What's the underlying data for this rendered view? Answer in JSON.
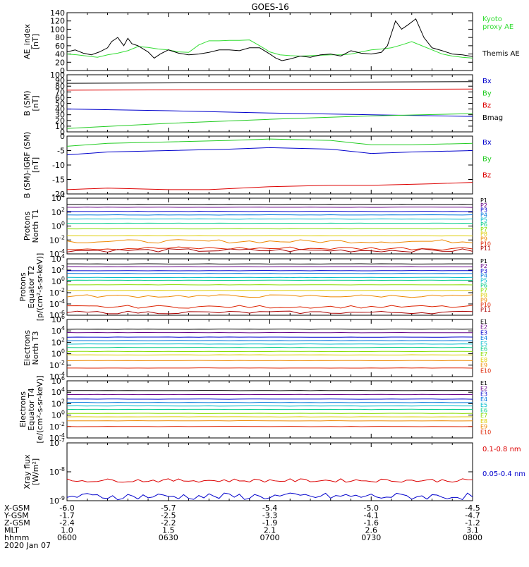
{
  "title": "GOES-16",
  "date_label": "2020 Jan 07",
  "ephemeris": {
    "rows": [
      {
        "label": "X-GSM",
        "values": [
          "-6.0",
          "-5.7",
          "-5.4",
          "-5.0",
          "-4.5"
        ]
      },
      {
        "label": "Y-GSM",
        "values": [
          "-1.7",
          "-2.5",
          "-3.3",
          "-4.1",
          "-4.7"
        ]
      },
      {
        "label": "Z-GSM",
        "values": [
          "-2.4",
          "-2.2",
          "-1.9",
          "-1.6",
          "-1.2"
        ]
      },
      {
        "label": "MLT",
        "values": [
          "1.0",
          "1.5",
          "2.1",
          "2.6",
          "3.1"
        ]
      },
      {
        "label": "hhmm",
        "values": [
          "0600",
          "0630",
          "0700",
          "0730",
          "0800"
        ]
      }
    ]
  },
  "colors": {
    "black": "#000000",
    "red": "#dd0000",
    "green": "#22cc22",
    "blue": "#0000cc",
    "kyoto_green": "#33dd33",
    "levels": [
      "#000000",
      "#660088",
      "#0000cc",
      "#0077dd",
      "#00bbcc",
      "#00cc88",
      "#88dd00",
      "#ddcc00",
      "#ee8800",
      "#dd2200",
      "#aa0000"
    ]
  },
  "chart_data": [
    {
      "type": "line",
      "ylabel": "AE_index\n[nT]",
      "ylim": [
        0,
        140
      ],
      "yticks": [
        "0",
        "20",
        "40",
        "60",
        "80",
        "100",
        "120",
        "140"
      ],
      "ylog": false,
      "legend": [
        {
          "text": "Kyoto\nproxy AE",
          "color": "#33dd33"
        },
        {
          "text": "Themis AE",
          "color": "#000000"
        }
      ],
      "x_hours": [
        6.0,
        6.5,
        7.0,
        7.5,
        8.0
      ],
      "series": [
        {
          "name": "Kyoto proxy AE",
          "color": "#33dd33",
          "x": [
            6.0,
            6.05,
            6.1,
            6.15,
            6.2,
            6.25,
            6.3,
            6.35,
            6.4,
            6.45,
            6.5,
            6.55,
            6.6,
            6.65,
            6.7,
            6.75,
            6.8,
            6.85,
            6.9,
            6.95,
            7.0,
            7.05,
            7.1,
            7.15,
            7.2,
            7.25,
            7.3,
            7.35,
            7.4,
            7.45,
            7.5,
            7.55,
            7.6,
            7.65,
            7.7,
            7.75,
            7.8,
            7.85,
            7.9,
            7.95,
            8.0
          ],
          "y": [
            40,
            38,
            35,
            32,
            38,
            42,
            48,
            58,
            56,
            52,
            50,
            45,
            44,
            62,
            72,
            72,
            73,
            73,
            74,
            60,
            45,
            38,
            36,
            35,
            36,
            37,
            38,
            38,
            40,
            45,
            50,
            52,
            55,
            62,
            70,
            60,
            50,
            40,
            35,
            32,
            30
          ]
        },
        {
          "name": "Themis AE",
          "color": "#000000",
          "x": [
            6.0,
            6.04,
            6.08,
            6.12,
            6.16,
            6.2,
            6.22,
            6.25,
            6.28,
            6.3,
            6.32,
            6.35,
            6.4,
            6.43,
            6.46,
            6.5,
            6.55,
            6.6,
            6.65,
            6.7,
            6.75,
            6.8,
            6.85,
            6.9,
            6.95,
            7.0,
            7.03,
            7.06,
            7.1,
            7.15,
            7.2,
            7.25,
            7.3,
            7.35,
            7.4,
            7.45,
            7.5,
            7.55,
            7.58,
            7.62,
            7.65,
            7.68,
            7.72,
            7.76,
            7.8,
            7.85,
            7.9,
            7.95,
            8.0
          ],
          "y": [
            45,
            50,
            42,
            38,
            45,
            55,
            70,
            80,
            60,
            78,
            65,
            60,
            45,
            30,
            40,
            50,
            42,
            38,
            40,
            44,
            50,
            50,
            48,
            55,
            55,
            40,
            30,
            24,
            28,
            35,
            32,
            38,
            40,
            35,
            48,
            42,
            40,
            44,
            60,
            120,
            100,
            110,
            125,
            80,
            55,
            48,
            40,
            38,
            34
          ]
        }
      ]
    },
    {
      "type": "line",
      "ylabel": "B (SM)\n[nT]",
      "ylim": [
        0,
        100
      ],
      "yticks": [
        "0",
        "10",
        "20",
        "30",
        "40",
        "50",
        "60",
        "70",
        "80",
        "90",
        "100"
      ],
      "ylog": false,
      "legend": [
        {
          "text": "Bx",
          "color": "#0000cc"
        },
        {
          "text": "By",
          "color": "#22cc22"
        },
        {
          "text": "Bz",
          "color": "#dd0000"
        },
        {
          "text": "Bmag",
          "color": "#000000"
        }
      ],
      "series": [
        {
          "name": "Bmag",
          "color": "#000000",
          "x": [
            6.0,
            8.0
          ],
          "y": [
            85,
            88
          ]
        },
        {
          "name": "Bz",
          "color": "#dd0000",
          "x": [
            6.0,
            8.0
          ],
          "y": [
            73,
            75
          ]
        },
        {
          "name": "Bx",
          "color": "#0000cc",
          "x": [
            6.0,
            6.5,
            7.0,
            7.5,
            8.0
          ],
          "y": [
            40,
            37,
            33,
            30,
            27
          ]
        },
        {
          "name": "By",
          "color": "#22cc22",
          "x": [
            6.0,
            6.5,
            7.0,
            7.5,
            8.0
          ],
          "y": [
            6,
            15,
            22,
            28,
            32
          ]
        }
      ]
    },
    {
      "type": "line",
      "ylabel": "B (SM)-IGRF (SM)\n[nT]",
      "ylim": [
        -20,
        0
      ],
      "yticks": [
        "-20",
        "-15",
        "-10",
        "-5",
        "0"
      ],
      "ylog": false,
      "legend": [
        {
          "text": "Bx",
          "color": "#0000cc"
        },
        {
          "text": "By",
          "color": "#22cc22"
        },
        {
          "text": "Bz",
          "color": "#dd0000"
        }
      ],
      "series": [
        {
          "name": "By",
          "color": "#22cc22",
          "x": [
            6.0,
            6.2,
            6.5,
            6.8,
            7.0,
            7.3,
            7.5,
            7.7,
            8.0
          ],
          "y": [
            -3.5,
            -2.5,
            -2.0,
            -1.5,
            -1.0,
            -1.5,
            -3.0,
            -3.0,
            -2.5
          ]
        },
        {
          "name": "Bx",
          "color": "#0000cc",
          "x": [
            6.0,
            6.2,
            6.5,
            6.8,
            7.0,
            7.3,
            7.5,
            7.7,
            8.0
          ],
          "y": [
            -6.5,
            -5.5,
            -5.0,
            -4.5,
            -4.0,
            -4.5,
            -6.0,
            -5.5,
            -5.0
          ]
        },
        {
          "name": "Bz",
          "color": "#dd0000",
          "x": [
            6.0,
            6.2,
            6.5,
            6.7,
            7.0,
            7.3,
            7.5,
            7.8,
            8.0
          ],
          "y": [
            -18.5,
            -18.0,
            -18.5,
            -18.5,
            -17.5,
            -17.0,
            -17.0,
            -16.5,
            -16.0
          ]
        }
      ]
    },
    {
      "type": "line",
      "ylabel": "Protons\nNorth T1",
      "ylog": true,
      "ylim_exp": [
        -4,
        4
      ],
      "yticks": [
        {
          "exp": -4,
          "text": "10",
          "sup": "-4"
        },
        {
          "exp": -2,
          "text": "10",
          "sup": "-2"
        },
        {
          "exp": 0,
          "text": "10",
          "sup": "0"
        },
        {
          "exp": 2,
          "text": "10",
          "sup": "2"
        },
        {
          "exp": 4,
          "text": "10",
          "sup": "4"
        }
      ],
      "legend_small": [
        "P1",
        "P2",
        "P3",
        "P4",
        "P5",
        "P6",
        "P7",
        "P8",
        "P9",
        "P10",
        "P11"
      ],
      "level_exp": [
        3.1,
        2.7,
        2.1,
        1.6,
        1.0,
        0.4,
        -0.4,
        -1.4,
        -2.2,
        -3.2,
        -3.5
      ]
    },
    {
      "type": "line",
      "ylabel": "Protons\nEquator T2\n[p/(cm²-s-sr-keV)]",
      "ylog": true,
      "ylim_exp": [
        -6,
        4
      ],
      "yticks": [
        {
          "exp": -6,
          "text": "10",
          "sup": "-6"
        },
        {
          "exp": -4,
          "text": "10",
          "sup": "-4"
        },
        {
          "exp": -2,
          "text": "10",
          "sup": "-2"
        },
        {
          "exp": 0,
          "text": "10",
          "sup": "0"
        },
        {
          "exp": 2,
          "text": "10",
          "sup": "2"
        },
        {
          "exp": 4,
          "text": "10",
          "sup": "4"
        }
      ],
      "legend_small": [
        "P1",
        "P2",
        "P3",
        "P4",
        "P5",
        "P6",
        "P7",
        "P8",
        "P9",
        "P10",
        "P11"
      ],
      "level_exp": [
        3.1,
        2.6,
        1.9,
        1.4,
        0.7,
        0.2,
        -0.6,
        -1.6,
        -2.6,
        -4.5,
        -5.5
      ]
    },
    {
      "type": "line",
      "ylabel": "Electrons\nNorth T3",
      "ylog": true,
      "ylim_exp": [
        -4,
        6
      ],
      "yticks": [
        {
          "exp": -4,
          "text": "10",
          "sup": "-4"
        },
        {
          "exp": -2,
          "text": "10",
          "sup": "-2"
        },
        {
          "exp": 0,
          "text": "10",
          "sup": "0"
        },
        {
          "exp": 2,
          "text": "10",
          "sup": "2"
        },
        {
          "exp": 4,
          "text": "10",
          "sup": "4"
        },
        {
          "exp": 6,
          "text": "10",
          "sup": "6"
        }
      ],
      "legend_small": [
        "E1",
        "E2",
        "E3",
        "E4",
        "E5",
        "E6",
        "E7",
        "E8",
        "E9",
        "E10"
      ],
      "level_exp": [
        4.3,
        3.7,
        2.9,
        2.3,
        1.7,
        1.1,
        0.4,
        -0.2,
        -1.2,
        -2.5
      ]
    },
    {
      "type": "line",
      "ylabel": "Electrons\nEquator T4\n[e/(cm²-s-sr-keV)]",
      "ylog": true,
      "ylim_exp": [
        -4,
        6
      ],
      "yticks": [
        {
          "exp": -4,
          "text": "10",
          "sup": "-4"
        },
        {
          "exp": -2,
          "text": "10",
          "sup": "-2"
        },
        {
          "exp": 0,
          "text": "10",
          "sup": "0"
        },
        {
          "exp": 2,
          "text": "10",
          "sup": "2"
        },
        {
          "exp": 4,
          "text": "10",
          "sup": "4"
        },
        {
          "exp": 6,
          "text": "10",
          "sup": "6"
        }
      ],
      "legend_small": [
        "E1",
        "E2",
        "E3",
        "E4",
        "E5",
        "E6",
        "E7",
        "E8",
        "E9",
        "E10"
      ],
      "level_exp": [
        4.3,
        3.6,
        2.8,
        2.2,
        1.6,
        1.0,
        0.3,
        -0.3,
        -1.0,
        -2.0
      ]
    },
    {
      "type": "line",
      "ylabel": "Xray flux\n[W/m²]",
      "ylog": true,
      "ylim_exp": [
        -9,
        -7
      ],
      "yticks": [
        {
          "exp": -9,
          "text": "10",
          "sup": "-9"
        },
        {
          "exp": -8,
          "text": "10",
          "sup": "-8"
        },
        {
          "exp": -7,
          "text": "10",
          "sup": "-7"
        }
      ],
      "legend": [
        {
          "text": "0.1-0.8 nm",
          "color": "#dd0000"
        },
        {
          "text": "0.05-0.4 nm",
          "color": "#0000cc"
        }
      ],
      "series_exp": [
        {
          "name": "0.1-0.8 nm",
          "color": "#dd0000",
          "level": -8.3,
          "jitter": 0.06
        },
        {
          "name": "0.05-0.4 nm",
          "color": "#0000cc",
          "level": -8.85,
          "jitter": 0.12
        }
      ]
    }
  ]
}
